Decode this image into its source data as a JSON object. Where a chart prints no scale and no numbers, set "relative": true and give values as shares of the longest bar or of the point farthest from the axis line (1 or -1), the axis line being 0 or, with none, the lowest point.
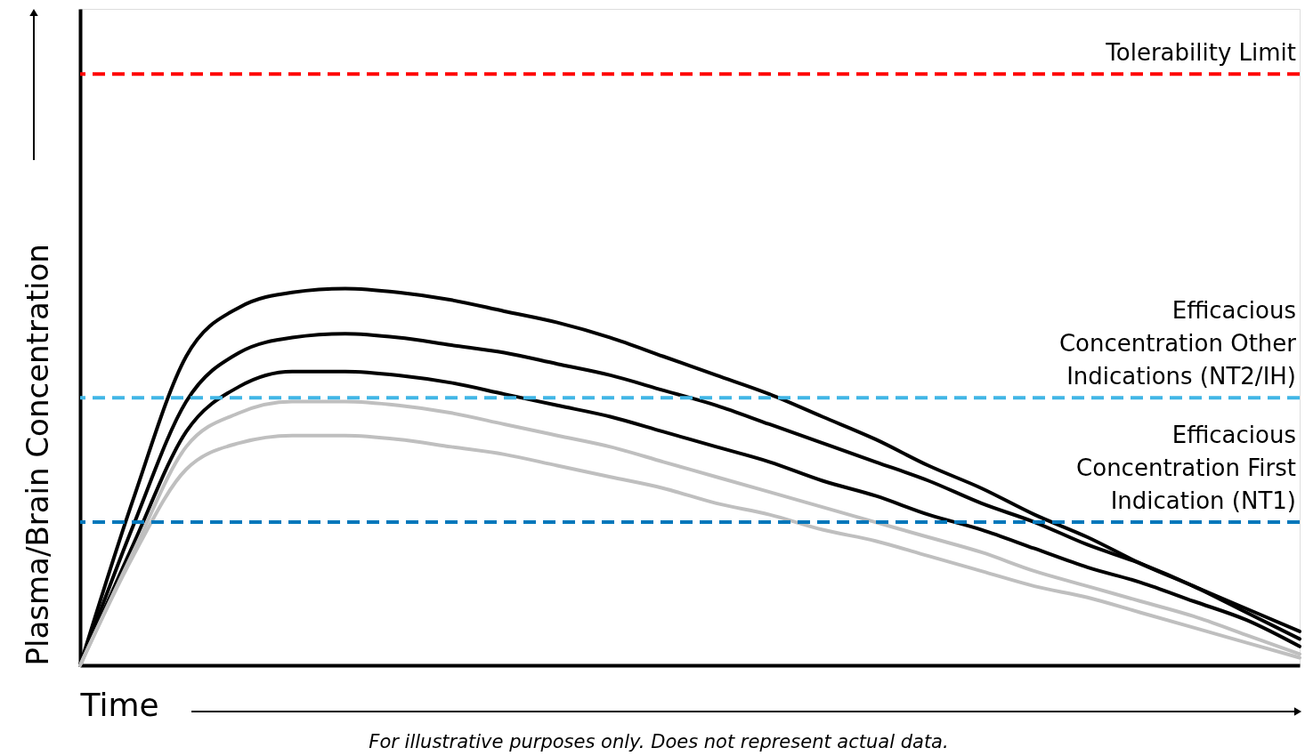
{
  "chart_data": {
    "type": "line",
    "relative": true,
    "xlabel": "Time",
    "ylabel": "Plasma/Brain Concentration",
    "categories": [
      null,
      null,
      null,
      null,
      null,
      null,
      null,
      null,
      null,
      null,
      null,
      null,
      null,
      null,
      null,
      null,
      null,
      null,
      null,
      null,
      null,
      null,
      null,
      null
    ],
    "series": [
      {
        "color": "#000000",
        "values": [
          0,
          0.44,
          0.82,
          0.95,
          0.99,
          1.0,
          0.99,
          0.97,
          0.94,
          0.91,
          0.87,
          0.82,
          0.77,
          0.72,
          0.66,
          0.6,
          0.53,
          0.47,
          0.4,
          0.34,
          0.27,
          0.21,
          0.15,
          0.09
        ]
      },
      {
        "color": "#000000",
        "values": [
          0,
          0.37,
          0.7,
          0.83,
          0.87,
          0.88,
          0.87,
          0.85,
          0.83,
          0.8,
          0.77,
          0.73,
          0.69,
          0.64,
          0.59,
          0.54,
          0.49,
          0.43,
          0.38,
          0.32,
          0.27,
          0.21,
          0.14,
          0.07
        ]
      },
      {
        "color": "#000000",
        "values": [
          0,
          0.32,
          0.62,
          0.74,
          0.78,
          0.78,
          0.77,
          0.75,
          0.72,
          0.69,
          0.66,
          0.62,
          0.58,
          0.54,
          0.49,
          0.45,
          0.4,
          0.36,
          0.31,
          0.26,
          0.22,
          0.17,
          0.12,
          0.05
        ]
      },
      {
        "color": "#bfbfbf",
        "values": [
          0,
          0.3,
          0.58,
          0.67,
          0.7,
          0.7,
          0.69,
          0.67,
          0.64,
          0.61,
          0.58,
          0.54,
          0.5,
          0.46,
          0.42,
          0.38,
          0.34,
          0.3,
          0.25,
          0.21,
          0.17,
          0.13,
          0.08,
          0.03
        ]
      },
      {
        "color": "#bfbfbf",
        "values": [
          0,
          0.29,
          0.52,
          0.59,
          0.61,
          0.61,
          0.6,
          0.58,
          0.56,
          0.53,
          0.5,
          0.47,
          0.43,
          0.4,
          0.36,
          0.33,
          0.29,
          0.25,
          0.21,
          0.18,
          0.14,
          0.1,
          0.06,
          0.02
        ]
      }
    ],
    "ref_lines": [
      {
        "axis": "y",
        "value": 1.57,
        "label": "Tolerability Limit",
        "color": "#ff0000",
        "line_style": "dashed"
      },
      {
        "axis": "y",
        "value": 0.71,
        "label": "Efficacious Concentration Other Indications (NT2/IH)",
        "color": "#41b6e6",
        "line_style": "dashed"
      },
      {
        "axis": "y",
        "value": 0.38,
        "label": "Efficacious Concentration First Indication (NT1)",
        "color": "#0077bb",
        "line_style": "dashed"
      }
    ],
    "annotations": [
      "For illustrative purposes only. Does not represent actual data."
    ],
    "grid": false,
    "marker": "none",
    "line_style": "solid",
    "tick_labels": false
  }
}
